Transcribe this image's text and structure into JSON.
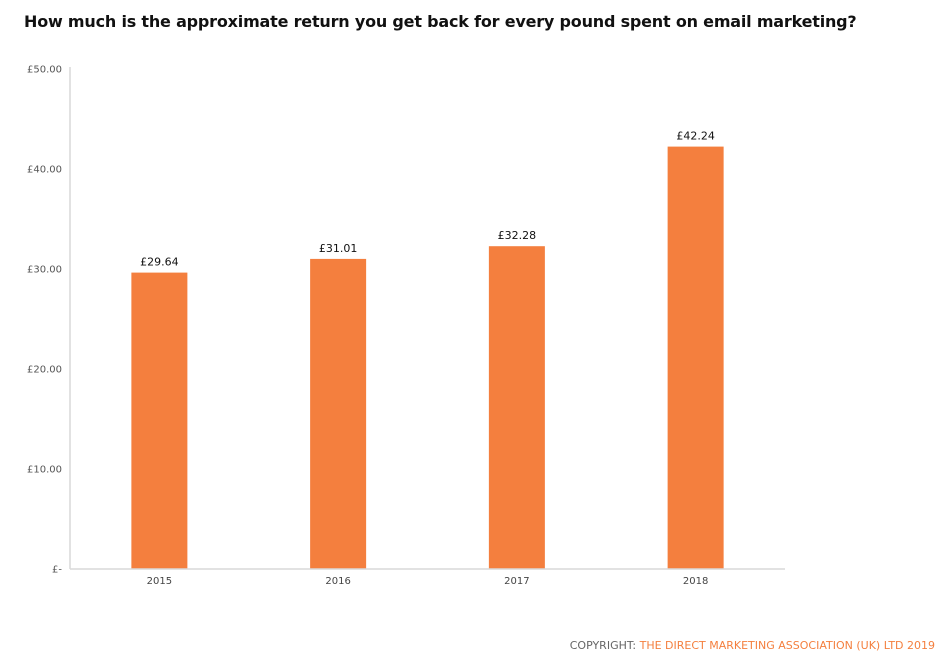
{
  "chart_data": {
    "type": "bar",
    "title": "How much is the approximate return you get back for every pound spent on email marketing?",
    "categories": [
      "2015",
      "2016",
      "2017",
      "2018"
    ],
    "values": [
      29.64,
      31.01,
      32.28,
      42.24
    ],
    "data_labels": [
      "£29.64",
      "£31.01",
      "£32.28",
      "£42.24"
    ],
    "xlabel": "",
    "ylabel": "",
    "ylim": [
      0,
      50
    ],
    "yticks": [
      0,
      10,
      20,
      30,
      40,
      50
    ],
    "ytick_labels": [
      "£-",
      "£10.00",
      "£20.00",
      "£30.00",
      "£40.00",
      "£50.00"
    ],
    "grid": false,
    "bar_color": "#f47f3e"
  },
  "footer": {
    "copyright_label": "COPYRIGHT:",
    "copyright_owner": "THE DIRECT MARKETING ASSOCIATION (UK) LTD 2019"
  }
}
